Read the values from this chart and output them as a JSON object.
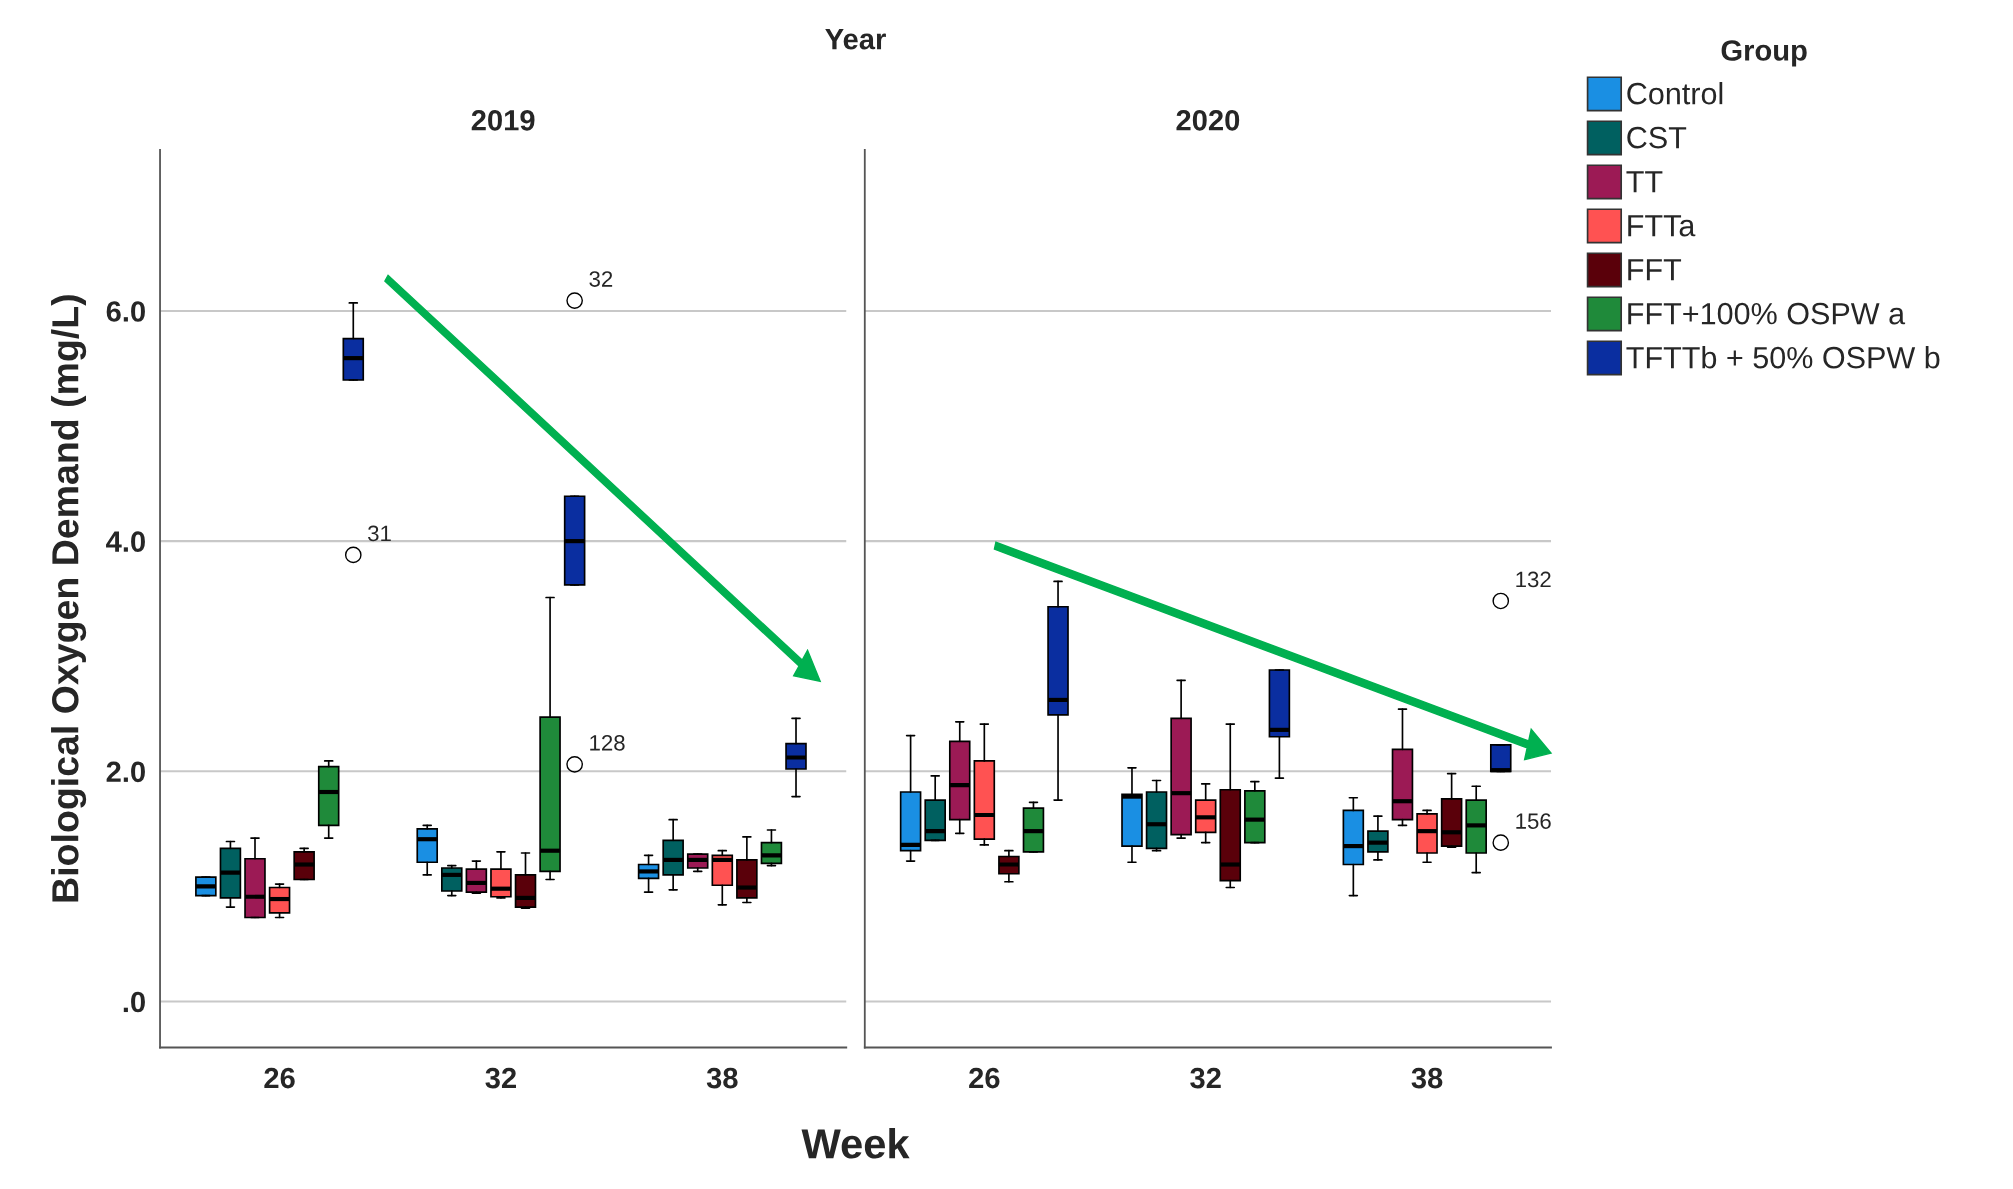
{
  "chart_data": [
    {
      "type": "box",
      "title": "2019",
      "subtitle": "Year",
      "xlabel": "Week",
      "ylabel": "Biological Oxygen Demand (mg/L)",
      "categories": [
        "26",
        "32",
        "38"
      ],
      "ylim": [
        -0.4,
        7.4
      ],
      "yticks": [
        {
          "value": 0,
          "label": ".0"
        },
        {
          "value": 2,
          "label": "2.0"
        },
        {
          "value": 4,
          "label": "4.0"
        },
        {
          "value": 6,
          "label": "6.0"
        }
      ],
      "grid": "y",
      "legend": "right",
      "legend_title": "Group",
      "series": [
        {
          "name": "Control",
          "color": "#1a8fe3",
          "boxes": [
            {
              "low": 0.92,
              "q1": 0.92,
              "median": 1.0,
              "q3": 1.08,
              "high": 1.08
            },
            {
              "low": 1.1,
              "q1": 1.21,
              "median": 1.41,
              "q3": 1.5,
              "high": 1.53
            },
            {
              "low": 0.95,
              "q1": 1.07,
              "median": 1.13,
              "q3": 1.19,
              "high": 1.27
            }
          ]
        },
        {
          "name": "CST",
          "color": "#006060",
          "boxes": [
            {
              "low": 0.82,
              "q1": 0.9,
              "median": 1.12,
              "q3": 1.33,
              "high": 1.39
            },
            {
              "low": 0.92,
              "q1": 0.96,
              "median": 1.1,
              "q3": 1.16,
              "high": 1.18
            },
            {
              "low": 0.97,
              "q1": 1.1,
              "median": 1.23,
              "q3": 1.4,
              "high": 1.58
            }
          ]
        },
        {
          "name": "TT",
          "color": "#9c1a55",
          "boxes": [
            {
              "low": 0.73,
              "q1": 0.73,
              "median": 0.91,
              "q3": 1.24,
              "high": 1.42
            },
            {
              "low": 0.94,
              "q1": 0.95,
              "median": 1.03,
              "q3": 1.15,
              "high": 1.22
            },
            {
              "low": 1.13,
              "q1": 1.16,
              "median": 1.23,
              "q3": 1.28,
              "high": 1.28
            }
          ]
        },
        {
          "name": "FTTa",
          "color": "#ff5252",
          "boxes": [
            {
              "low": 0.73,
              "q1": 0.77,
              "median": 0.89,
              "q3": 0.99,
              "high": 1.02
            },
            {
              "low": 0.9,
              "q1": 0.91,
              "median": 0.98,
              "q3": 1.15,
              "high": 1.3
            },
            {
              "low": 0.84,
              "q1": 1.01,
              "median": 1.23,
              "q3": 1.27,
              "high": 1.31
            }
          ]
        },
        {
          "name": "FFT",
          "color": "#5a000a",
          "boxes": [
            {
              "low": 1.06,
              "q1": 1.06,
              "median": 1.19,
              "q3": 1.3,
              "high": 1.33
            },
            {
              "low": 0.81,
              "q1": 0.82,
              "median": 0.9,
              "q3": 1.1,
              "high": 1.29
            },
            {
              "low": 0.86,
              "q1": 0.9,
              "median": 0.99,
              "q3": 1.23,
              "high": 1.43
            }
          ]
        },
        {
          "name": "FFT+100% OSPW a",
          "color": "#1f8a3a",
          "boxes": [
            {
              "low": 1.42,
              "q1": 1.53,
              "median": 1.82,
              "q3": 2.04,
              "high": 2.09
            },
            {
              "low": 1.06,
              "q1": 1.13,
              "median": 1.31,
              "q3": 2.47,
              "high": 3.51
            },
            {
              "low": 1.18,
              "q1": 1.2,
              "median": 1.27,
              "q3": 1.38,
              "high": 1.49
            }
          ]
        },
        {
          "name": "TFTTb + 50% OSPW b",
          "color": "#0a2ea0",
          "boxes": [
            {
              "low": 5.4,
              "q1": 5.4,
              "median": 5.59,
              "q3": 5.76,
              "high": 6.07,
              "outliers": [
                3.88
              ]
            },
            {
              "low": 3.62,
              "q1": 3.62,
              "median": 4.0,
              "q3": 4.39,
              "high": 4.39,
              "outliers": [
                6.09,
                2.06
              ]
            },
            {
              "low": 1.78,
              "q1": 2.02,
              "median": 2.12,
              "q3": 2.24,
              "high": 2.46
            }
          ]
        }
      ],
      "annotations": [
        "31",
        "32",
        "128"
      ]
    },
    {
      "type": "box",
      "title": "2020",
      "categories": [
        "26",
        "32",
        "38"
      ],
      "ylim": [
        -0.4,
        7.4
      ],
      "yticks": [
        0,
        2,
        4,
        6
      ],
      "grid": "y",
      "tick_labels": "x",
      "series": [
        {
          "color": "#1a8fe3",
          "boxes": [
            {
              "low": 1.22,
              "q1": 1.31,
              "median": 1.36,
              "q3": 1.82,
              "high": 2.31
            },
            {
              "low": 1.21,
              "q1": 1.35,
              "median": 1.78,
              "q3": 1.8,
              "high": 2.03
            },
            {
              "low": 0.92,
              "q1": 1.19,
              "median": 1.35,
              "q3": 1.66,
              "high": 1.77
            }
          ]
        },
        {
          "color": "#006060",
          "boxes": [
            {
              "low": 1.4,
              "q1": 1.4,
              "median": 1.48,
              "q3": 1.75,
              "high": 1.96
            },
            {
              "low": 1.31,
              "q1": 1.33,
              "median": 1.54,
              "q3": 1.82,
              "high": 1.92
            },
            {
              "low": 1.23,
              "q1": 1.3,
              "median": 1.38,
              "q3": 1.48,
              "high": 1.61
            }
          ]
        },
        {
          "color": "#9c1a55",
          "boxes": [
            {
              "low": 1.46,
              "q1": 1.58,
              "median": 1.88,
              "q3": 2.26,
              "high": 2.43
            },
            {
              "low": 1.42,
              "q1": 1.45,
              "median": 1.81,
              "q3": 2.46,
              "high": 2.79
            },
            {
              "low": 1.53,
              "q1": 1.58,
              "median": 1.74,
              "q3": 2.19,
              "high": 2.54
            }
          ]
        },
        {
          "color": "#ff5252",
          "boxes": [
            {
              "low": 1.36,
              "q1": 1.41,
              "median": 1.62,
              "q3": 2.09,
              "high": 2.41
            },
            {
              "low": 1.38,
              "q1": 1.47,
              "median": 1.6,
              "q3": 1.75,
              "high": 1.89
            },
            {
              "low": 1.21,
              "q1": 1.29,
              "median": 1.48,
              "q3": 1.63,
              "high": 1.66
            }
          ]
        },
        {
          "color": "#5a000a",
          "boxes": [
            {
              "low": 1.04,
              "q1": 1.11,
              "median": 1.19,
              "q3": 1.26,
              "high": 1.31
            },
            {
              "low": 0.99,
              "q1": 1.05,
              "median": 1.19,
              "q3": 1.84,
              "high": 2.41
            },
            {
              "low": 1.34,
              "q1": 1.35,
              "median": 1.47,
              "q3": 1.76,
              "high": 1.98
            }
          ]
        },
        {
          "color": "#1f8a3a",
          "boxes": [
            {
              "low": 1.3,
              "q1": 1.3,
              "median": 1.48,
              "q3": 1.68,
              "high": 1.73
            },
            {
              "low": 1.38,
              "q1": 1.38,
              "median": 1.58,
              "q3": 1.83,
              "high": 1.91
            },
            {
              "low": 1.12,
              "q1": 1.29,
              "median": 1.53,
              "q3": 1.75,
              "high": 1.87
            }
          ]
        },
        {
          "color": "#0a2ea0",
          "boxes": [
            {
              "low": 1.75,
              "q1": 2.49,
              "median": 2.62,
              "q3": 3.43,
              "high": 3.65
            },
            {
              "low": 1.94,
              "q1": 2.3,
              "median": 2.36,
              "q3": 2.88,
              "high": 2.88
            },
            {
              "low": 2.0,
              "q1": 2.0,
              "median": 2.01,
              "q3": 2.23,
              "high": 2.23,
              "outliers": [
                3.48,
                1.38
              ]
            }
          ]
        }
      ],
      "annotations": [
        "132",
        "156"
      ]
    }
  ]
}
